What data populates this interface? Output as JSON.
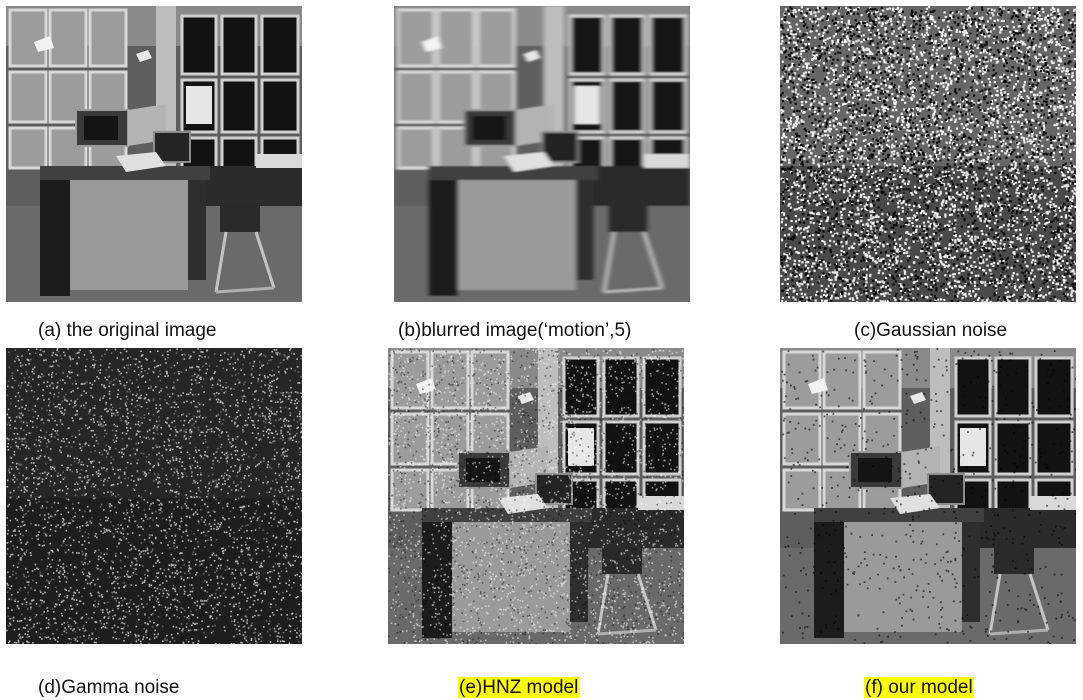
{
  "figure": {
    "panels": [
      {
        "caption": "(a) the original image",
        "highlight": false,
        "variant": "original"
      },
      {
        "caption": "(b)blurred image(‘motion’,5)",
        "highlight": false,
        "variant": "blurred"
      },
      {
        "caption": "(c)Gaussian noise",
        "highlight": false,
        "variant": "gaussian"
      },
      {
        "caption": "(d)Gamma noise",
        "highlight": false,
        "variant": "gamma"
      },
      {
        "caption": "(e)HNZ model",
        "highlight": true,
        "variant": "hnz"
      },
      {
        "caption": "(f) our model",
        "highlight": true,
        "variant": "ours"
      }
    ],
    "highlight_color": "#ffff00"
  }
}
